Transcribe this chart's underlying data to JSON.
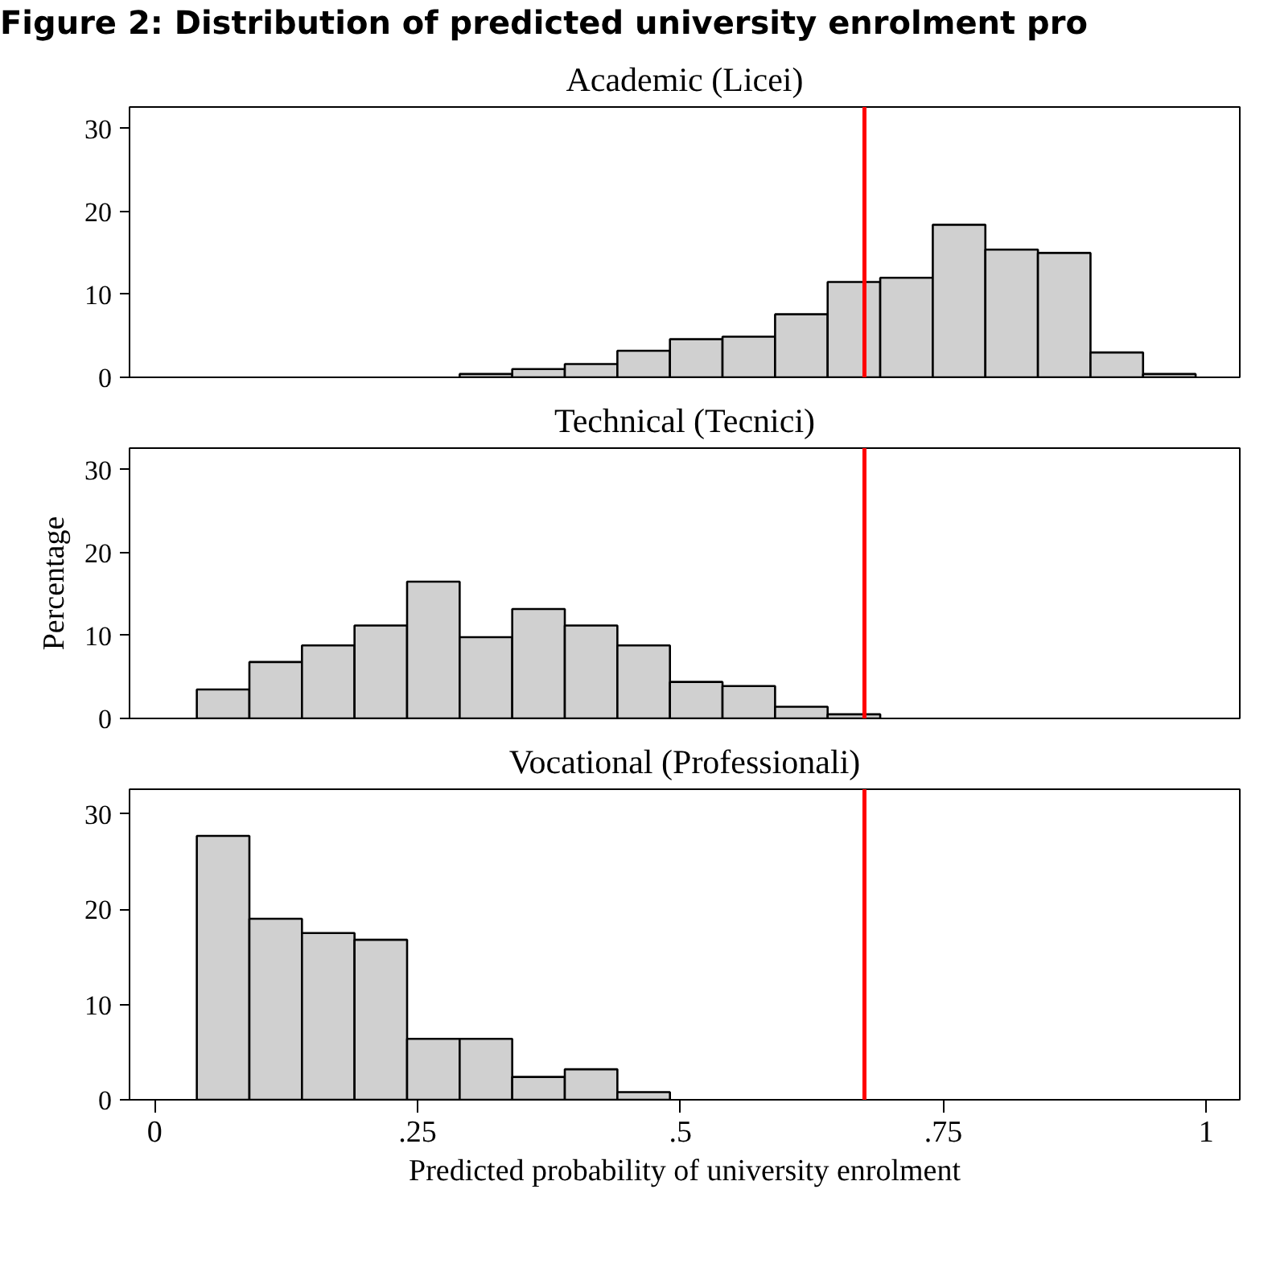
{
  "chart_data": [
    {
      "type": "histogram",
      "title": "Academic (Licei)",
      "annotations": [
        "Figure 2: Distribution of predicted university enrolment pro"
      ],
      "bins": [
        0.29,
        0.34,
        0.39,
        0.44,
        0.49,
        0.54,
        0.59,
        0.64,
        0.69,
        0.74,
        0.79,
        0.84,
        0.89,
        0.94,
        0.99
      ],
      "values": [
        0.4,
        1,
        1.6,
        3.2,
        4.6,
        4.9,
        7.6,
        11.5,
        12,
        18.4,
        15.4,
        15,
        3,
        0.4
      ],
      "color": "#d0d0d0",
      "xlim": [
        -0.024,
        1.032
      ],
      "ylim": [
        0,
        32.6
      ],
      "yticks": [
        0,
        10,
        20,
        30
      ],
      "xticks": [
        {
          "value": 0,
          "label": null
        },
        {
          "value": 0.25,
          "label": null
        },
        {
          "value": 0.5,
          "label": null
        },
        {
          "value": 0.75,
          "label": null
        },
        {
          "value": 1,
          "label": null
        }
      ],
      "tick_labels": "y",
      "grid": false,
      "ref_lines": [
        {
          "axis": "x",
          "value": 0.675,
          "label": null,
          "color": "#ff0000"
        }
      ]
    },
    {
      "type": "histogram",
      "title": "Technical (Tecnici)",
      "ylabel": "Percentage",
      "bins": [
        0.04,
        0.09,
        0.14,
        0.19,
        0.24,
        0.29,
        0.34,
        0.39,
        0.44,
        0.49,
        0.54,
        0.59,
        0.64,
        0.69
      ],
      "values": [
        3.5,
        6.8,
        8.8,
        11.2,
        16.5,
        9.8,
        13.2,
        11.2,
        8.8,
        4.4,
        3.9,
        1.4,
        0.5
      ],
      "color": "#d0d0d0",
      "xlim": [
        -0.024,
        1.032
      ],
      "ylim": [
        0,
        32.6
      ],
      "yticks": [
        0,
        10,
        20,
        30
      ],
      "xticks": [
        {
          "value": 0,
          "label": null
        },
        {
          "value": 0.25,
          "label": null
        },
        {
          "value": 0.5,
          "label": null
        },
        {
          "value": 0.75,
          "label": null
        },
        {
          "value": 1,
          "label": null
        }
      ],
      "tick_labels": "y",
      "grid": false,
      "ref_lines": [
        {
          "axis": "x",
          "value": 0.675,
          "label": null,
          "color": "#ff0000"
        }
      ]
    },
    {
      "type": "histogram",
      "title": "Vocational (Professionali)",
      "xlabel": "Predicted probability of university enrolment",
      "bins": [
        0.04,
        0.09,
        0.14,
        0.19,
        0.24,
        0.29,
        0.34,
        0.39,
        0.44,
        0.49
      ],
      "values": [
        27.7,
        19,
        17.5,
        16.8,
        6.4,
        6.4,
        2.4,
        3.2,
        0.8
      ],
      "color": "#d0d0d0",
      "xlim": [
        -0.024,
        1.032
      ],
      "ylim": [
        0,
        32.6
      ],
      "yticks": [
        0,
        10,
        20,
        30
      ],
      "xticks": [
        0,
        {
          "value": 0.25,
          "label": ".25"
        },
        {
          "value": 0.5,
          "label": ".5"
        },
        {
          "value": 0.75,
          "label": ".75"
        },
        1
      ],
      "grid": false,
      "ref_lines": [
        {
          "axis": "x",
          "value": 0.675,
          "label": null,
          "color": "#ff0000"
        }
      ]
    }
  ]
}
